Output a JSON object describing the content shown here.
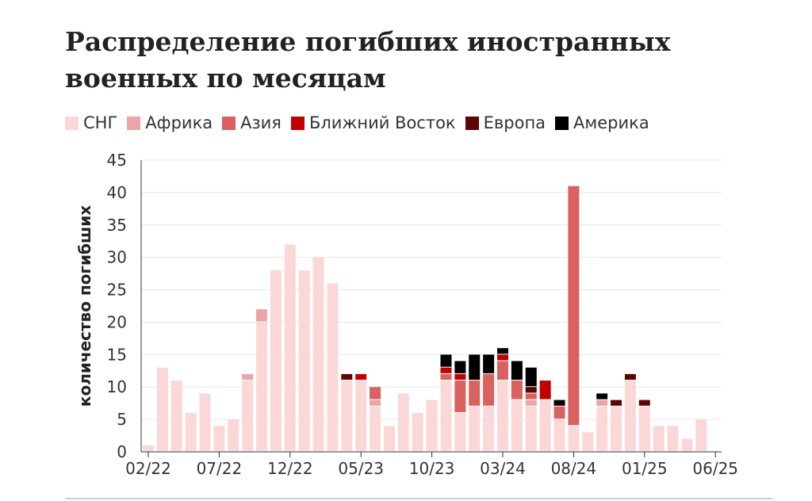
{
  "page": {
    "title": "Распределение погибших иностранных военных по месяцам"
  },
  "legend": [
    {
      "label": "СНГ",
      "color": "#fbd8d7"
    },
    {
      "label": "Африка",
      "color": "#eba5a5"
    },
    {
      "label": "Азия",
      "color": "#d9615f"
    },
    {
      "label": "Ближний Восток",
      "color": "#c00000"
    },
    {
      "label": "Европа",
      "color": "#5c0505"
    },
    {
      "label": "Америка",
      "color": "#000000"
    }
  ],
  "chart_data": {
    "type": "bar",
    "stacked": true,
    "title": "Распределение погибших иностранных военных по месяцам",
    "xlabel": "",
    "ylabel": "количество погибших",
    "ylim": [
      0,
      45
    ],
    "yticks": [
      0,
      5,
      10,
      15,
      20,
      25,
      30,
      35,
      40,
      45
    ],
    "xtick_labels": [
      "02/22",
      "07/22",
      "12/22",
      "05/23",
      "10/23",
      "03/24",
      "08/24",
      "01/25",
      "06/25"
    ],
    "categories": [
      "02/22",
      "03/22",
      "04/22",
      "05/22",
      "06/22",
      "07/22",
      "08/22",
      "09/22",
      "10/22",
      "11/22",
      "12/22",
      "01/23",
      "02/23",
      "03/23",
      "04/23",
      "05/23",
      "06/23",
      "07/23",
      "08/23",
      "09/23",
      "10/23",
      "11/23",
      "12/23",
      "01/24",
      "02/24",
      "03/24",
      "04/24",
      "05/24",
      "06/24",
      "07/24",
      "08/24",
      "09/24",
      "10/24",
      "11/24",
      "12/24",
      "01/25",
      "02/25",
      "03/25",
      "04/25",
      "05/25",
      "06/25"
    ],
    "series": [
      {
        "name": "СНГ",
        "color": "#fbd8d7",
        "values": [
          1,
          13,
          11,
          6,
          9,
          4,
          5,
          11,
          20,
          28,
          32,
          28,
          30,
          26,
          11,
          11,
          7,
          4,
          9,
          6,
          8,
          11,
          6,
          7,
          7,
          11,
          8,
          7,
          8,
          5,
          4,
          3,
          7,
          7,
          11,
          7,
          4,
          4,
          2,
          5,
          0
        ]
      },
      {
        "name": "Африка",
        "color": "#eba5a5",
        "values": [
          0,
          0,
          0,
          0,
          0,
          0,
          0,
          1,
          2,
          0,
          0,
          0,
          0,
          0,
          0,
          0,
          1,
          0,
          0,
          0,
          0,
          0,
          0,
          0,
          0,
          0,
          0,
          1,
          0,
          0,
          0,
          0,
          1,
          0,
          0,
          0,
          0,
          0,
          0,
          0,
          0
        ]
      },
      {
        "name": "Азия",
        "color": "#d9615f",
        "values": [
          0,
          0,
          0,
          0,
          0,
          0,
          0,
          0,
          0,
          0,
          0,
          0,
          0,
          0,
          0,
          0,
          2,
          0,
          0,
          0,
          0,
          1,
          5,
          4,
          5,
          3,
          3,
          1,
          0,
          2,
          37,
          0,
          0,
          0,
          0,
          0,
          0,
          0,
          0,
          0,
          0
        ]
      },
      {
        "name": "Ближний Восток",
        "color": "#c00000",
        "values": [
          0,
          0,
          0,
          0,
          0,
          0,
          0,
          0,
          0,
          0,
          0,
          0,
          0,
          0,
          0,
          1,
          0,
          0,
          0,
          0,
          0,
          1,
          1,
          0,
          0,
          1,
          0,
          0,
          3,
          0,
          0,
          0,
          0,
          0,
          0,
          0,
          0,
          0,
          0,
          0,
          0
        ]
      },
      {
        "name": "Европа",
        "color": "#5c0505",
        "values": [
          0,
          0,
          0,
          0,
          0,
          0,
          0,
          0,
          0,
          0,
          0,
          0,
          0,
          0,
          1,
          0,
          0,
          0,
          0,
          0,
          0,
          0,
          0,
          0,
          0,
          0,
          0,
          1,
          0,
          0,
          0,
          0,
          0,
          1,
          1,
          1,
          0,
          0,
          0,
          0,
          0
        ]
      },
      {
        "name": "Америка",
        "color": "#000000",
        "values": [
          0,
          0,
          0,
          0,
          0,
          0,
          0,
          0,
          0,
          0,
          0,
          0,
          0,
          0,
          0,
          0,
          0,
          0,
          0,
          0,
          0,
          2,
          2,
          4,
          3,
          1,
          3,
          3,
          0,
          1,
          0,
          0,
          1,
          0,
          0,
          0,
          0,
          0,
          0,
          0,
          0
        ]
      }
    ]
  }
}
